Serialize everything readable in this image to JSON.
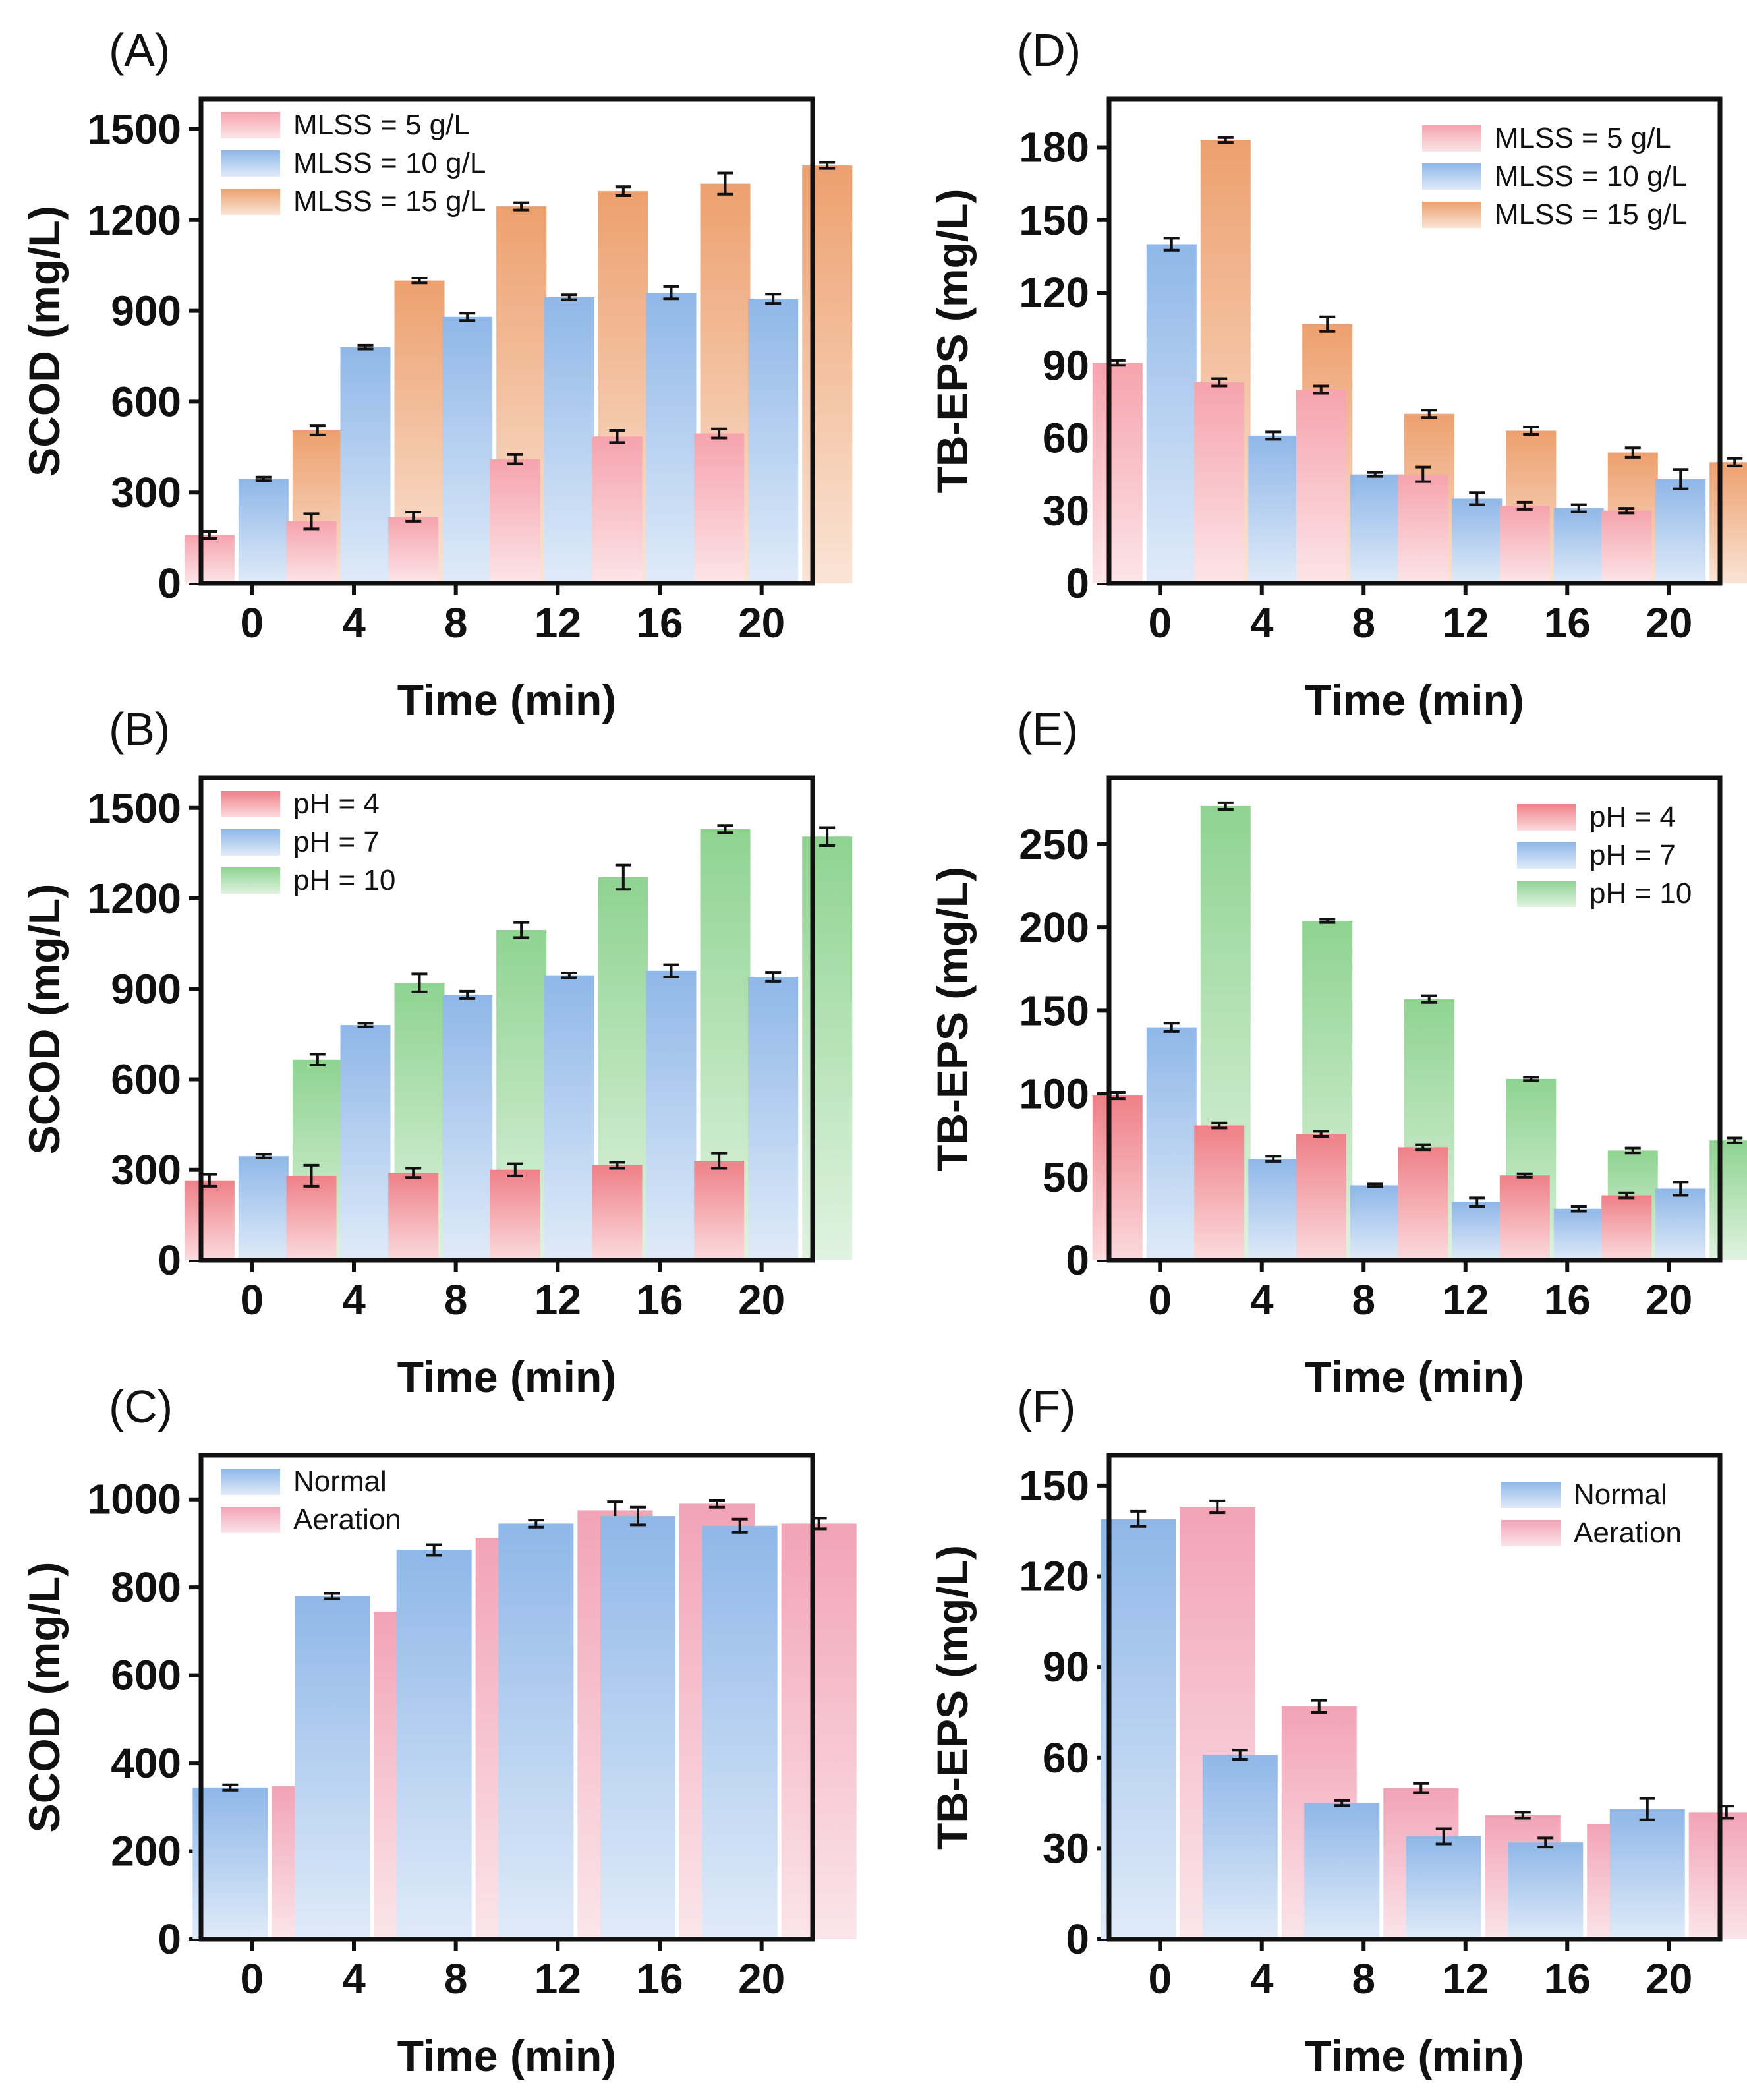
{
  "figure": {
    "description_free": true
  },
  "chart_data": [
    {
      "panel": "(A)",
      "type": "bar",
      "xlabel": "Time (min)",
      "ylabel": "SCOD (mg/L)",
      "categories": [
        "0",
        "4",
        "8",
        "12",
        "16",
        "20"
      ],
      "ylim": [
        0,
        1600
      ],
      "yticks": [
        0,
        300,
        600,
        900,
        1200,
        1500
      ],
      "legend_position": "top-left",
      "series": [
        {
          "name": "MLSS = 5 g/L",
          "color": "#f6a3ad",
          "values": [
            160,
            205,
            220,
            410,
            485,
            495
          ],
          "errors": [
            12,
            25,
            15,
            15,
            20,
            15
          ]
        },
        {
          "name": "MLSS = 10 g/L",
          "color": "#8fb7e8",
          "values": [
            345,
            780,
            880,
            945,
            960,
            940
          ],
          "errors": [
            6,
            6,
            12,
            8,
            20,
            15
          ]
        },
        {
          "name": "MLSS = 15 g/L",
          "color": "#eda06e",
          "values": [
            505,
            1000,
            1245,
            1295,
            1320,
            1380
          ],
          "errors": [
            15,
            8,
            12,
            15,
            35,
            10
          ]
        }
      ]
    },
    {
      "panel": "(D)",
      "type": "bar",
      "xlabel": "Time (min)",
      "ylabel": "TB-EPS (mg/L)",
      "categories": [
        "0",
        "4",
        "8",
        "12",
        "16",
        "20"
      ],
      "ylim": [
        0,
        200
      ],
      "yticks": [
        0,
        30,
        60,
        90,
        120,
        150,
        180
      ],
      "legend_position": "top-right",
      "series": [
        {
          "name": "MLSS = 5 g/L",
          "color": "#f6a3ad",
          "values": [
            91,
            83,
            80,
            45,
            32,
            30
          ],
          "errors": [
            1,
            1.5,
            1.5,
            3,
            1.5,
            1
          ]
        },
        {
          "name": "MLSS = 10 g/L",
          "color": "#8fb7e8",
          "values": [
            140,
            61,
            45,
            35,
            31,
            43
          ],
          "errors": [
            2.5,
            1.5,
            0.8,
            2.5,
            1.5,
            4
          ]
        },
        {
          "name": "MLSS = 15 g/L",
          "color": "#eda06e",
          "values": [
            183,
            107,
            70,
            63,
            54,
            50
          ],
          "errors": [
            1,
            3,
            1.5,
            1.5,
            2,
            1.5
          ]
        }
      ]
    },
    {
      "panel": "(B)",
      "type": "bar",
      "xlabel": "Time (min)",
      "ylabel": "SCOD (mg/L)",
      "categories": [
        "0",
        "4",
        "8",
        "12",
        "16",
        "20"
      ],
      "ylim": [
        0,
        1600
      ],
      "yticks": [
        0,
        300,
        600,
        900,
        1200,
        1500
      ],
      "legend_position": "top-left",
      "series": [
        {
          "name": "pH = 4",
          "color": "#ef8088",
          "values": [
            265,
            280,
            290,
            300,
            315,
            330
          ],
          "errors": [
            20,
            35,
            15,
            20,
            10,
            25
          ]
        },
        {
          "name": "pH = 7",
          "color": "#8fb7e8",
          "values": [
            345,
            780,
            880,
            945,
            960,
            940
          ],
          "errors": [
            6,
            6,
            12,
            8,
            20,
            15
          ]
        },
        {
          "name": "pH = 10",
          "color": "#8fd391",
          "values": [
            665,
            920,
            1095,
            1270,
            1430,
            1405
          ],
          "errors": [
            18,
            30,
            25,
            40,
            12,
            30
          ]
        }
      ]
    },
    {
      "panel": "(E)",
      "type": "bar",
      "xlabel": "Time (min)",
      "ylabel": "TB-EPS (mg/L)",
      "categories": [
        "0",
        "4",
        "8",
        "12",
        "16",
        "20"
      ],
      "ylim": [
        0,
        290
      ],
      "yticks": [
        0,
        50,
        100,
        150,
        200,
        250
      ],
      "legend_position": "top-right",
      "series": [
        {
          "name": "pH = 4",
          "color": "#ef8088",
          "values": [
            99,
            81,
            76,
            68,
            51,
            39
          ],
          "errors": [
            2,
            1.5,
            1.5,
            1.5,
            1,
            1.5
          ]
        },
        {
          "name": "pH = 7",
          "color": "#8fb7e8",
          "values": [
            140,
            61,
            45,
            35,
            31,
            43
          ],
          "errors": [
            2.5,
            1.5,
            0.8,
            2.5,
            1.5,
            4
          ]
        },
        {
          "name": "pH = 10",
          "color": "#8fd391",
          "values": [
            273,
            204,
            157,
            109,
            66,
            72
          ],
          "errors": [
            2,
            1,
            2,
            1,
            1.5,
            1.5
          ]
        }
      ]
    },
    {
      "panel": "(C)",
      "type": "bar",
      "xlabel": "Time (min)",
      "ylabel": "SCOD (mg/L)",
      "categories": [
        "0",
        "4",
        "8",
        "12",
        "16",
        "20"
      ],
      "ylim": [
        0,
        1100
      ],
      "yticks": [
        0,
        200,
        400,
        600,
        800,
        1000
      ],
      "legend_position": "top-left",
      "series": [
        {
          "name": "Normal",
          "color": "#8fb7e8",
          "values": [
            345,
            780,
            885,
            945,
            962,
            940
          ],
          "errors": [
            6,
            6,
            12,
            8,
            20,
            15
          ]
        },
        {
          "name": "Aeration",
          "color": "#f2a3b6",
          "values": [
            348,
            745,
            912,
            975,
            990,
            945
          ],
          "errors": [
            5,
            8,
            8,
            20,
            8,
            12
          ]
        }
      ]
    },
    {
      "panel": "(F)",
      "type": "bar",
      "xlabel": "Time (min)",
      "ylabel": "TB-EPS (mg/L)",
      "categories": [
        "0",
        "4",
        "8",
        "12",
        "16",
        "20"
      ],
      "ylim": [
        0,
        160
      ],
      "yticks": [
        0,
        30,
        60,
        90,
        120,
        150
      ],
      "legend_position": "top-right",
      "series": [
        {
          "name": "Normal",
          "color": "#8fb7e8",
          "values": [
            139,
            61,
            45,
            34,
            32,
            43
          ],
          "errors": [
            2.5,
            1.5,
            0.8,
            2.5,
            1.5,
            3.5
          ]
        },
        {
          "name": "Aeration",
          "color": "#f2a3b6",
          "values": [
            143,
            77,
            50,
            41,
            38,
            42
          ],
          "errors": [
            2,
            2,
            1.5,
            1,
            1,
            2
          ]
        }
      ]
    }
  ]
}
